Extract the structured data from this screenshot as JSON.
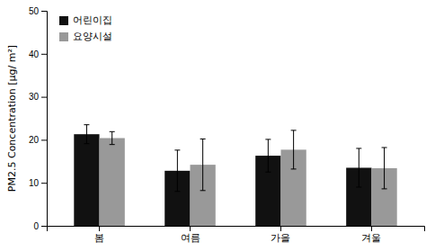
{
  "chart_data": {
    "type": "bar",
    "categories": [
      "봄",
      "여름",
      "가을",
      "겨울"
    ],
    "series": [
      {
        "name": "어린이집",
        "color": "#111111",
        "values": [
          21.3,
          12.8,
          16.3,
          13.5
        ],
        "errors": [
          2.2,
          4.8,
          3.8,
          4.5
        ]
      },
      {
        "name": "요양시설",
        "color": "#999999",
        "values": [
          20.4,
          14.2,
          17.7,
          13.4
        ],
        "errors": [
          1.5,
          6.0,
          4.5,
          4.8
        ]
      }
    ],
    "ylabel": "PM2.5 Concentration [μg/ m²]",
    "ylim": [
      0,
      50
    ],
    "yticks": [
      0,
      10,
      20,
      30,
      40,
      50
    ],
    "grid": false,
    "legend": "upper left"
  }
}
